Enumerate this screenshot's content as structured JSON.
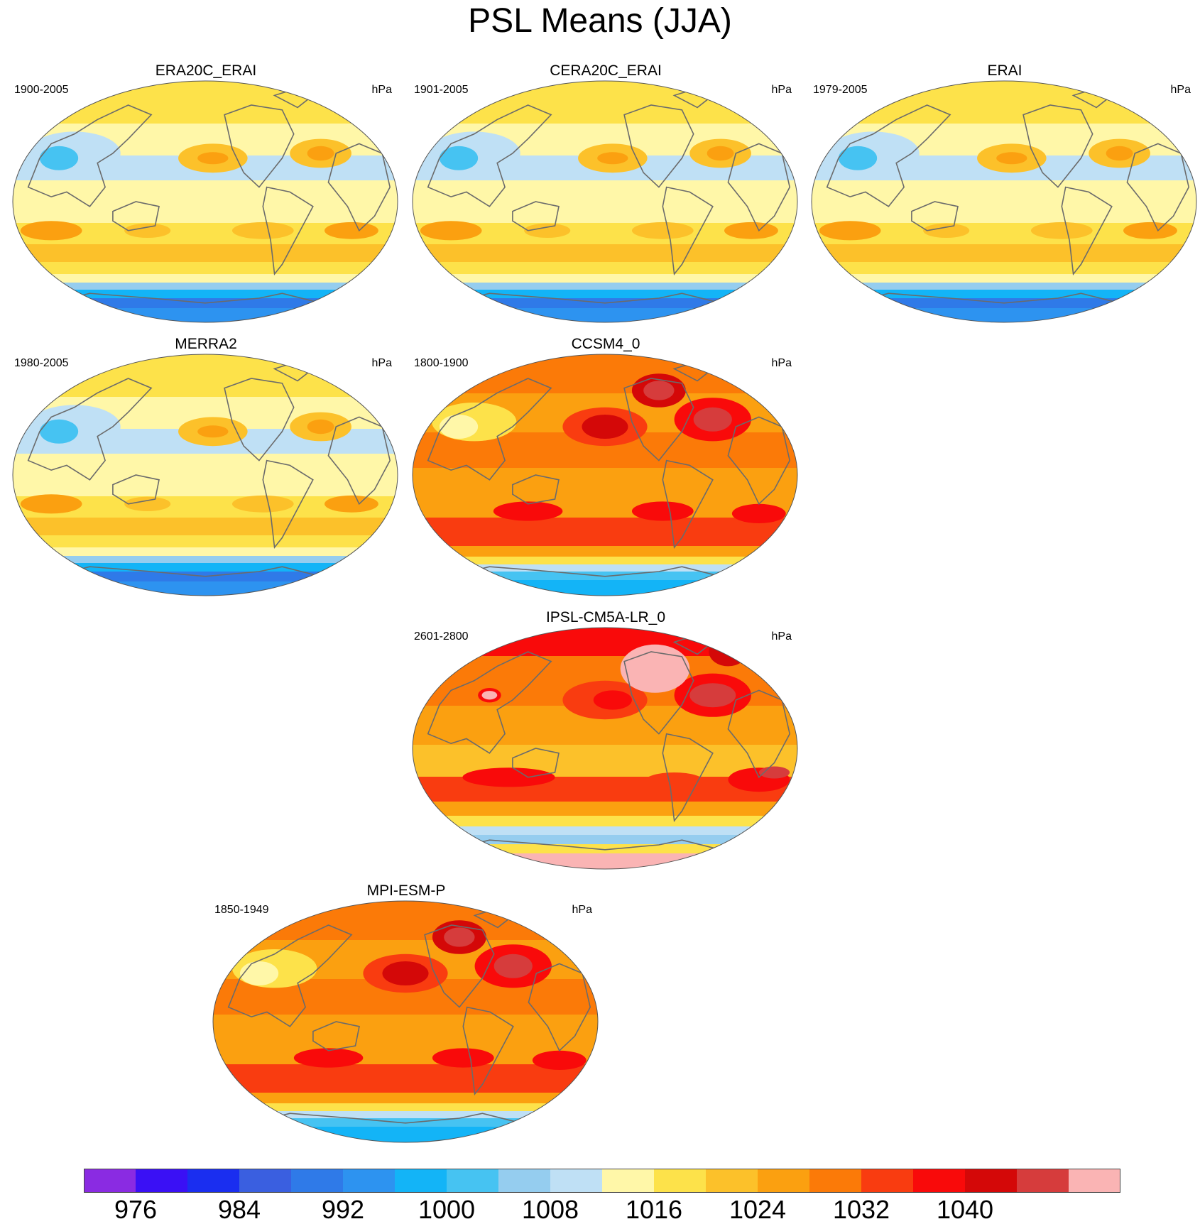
{
  "chart_data": {
    "type": "heatmap",
    "title": "PSL Means (JJA)",
    "units": "hPa",
    "projection": "robinson",
    "panels": [
      {
        "name": "ERA20C_ERAI",
        "period": "1900-2005",
        "units": "hPa",
        "regime": "cool"
      },
      {
        "name": "CERA20C_ERAI",
        "period": "1901-2005",
        "units": "hPa",
        "regime": "cool"
      },
      {
        "name": "ERAI",
        "period": "1979-2005",
        "units": "hPa",
        "regime": "cool"
      },
      {
        "name": "MERRA2",
        "period": "1980-2005",
        "units": "hPa",
        "regime": "cool"
      },
      {
        "name": "CCSM4_0",
        "period": "1800-1900",
        "units": "hPa",
        "regime": "warm"
      },
      {
        "name": "IPSL-CM5A-LR_0",
        "period": "2601-2800",
        "units": "hPa",
        "regime": "hot"
      },
      {
        "name": "MPI-ESM-P",
        "period": "1850-1949",
        "units": "hPa",
        "regime": "warm"
      }
    ],
    "colorbar": {
      "colors": [
        "#8a2be2",
        "#3a10f5",
        "#1a2ef0",
        "#3a5fe0",
        "#2f7ae8",
        "#2d93f0",
        "#13b4f7",
        "#46c3f2",
        "#95cdef",
        "#bfe0f5",
        "#fff7a8",
        "#fde24a",
        "#fcc12a",
        "#fba010",
        "#fb7a08",
        "#f93c10",
        "#f90a0a",
        "#d40808",
        "#d63c3c",
        "#fab4b4"
      ],
      "labels": [
        "976",
        "984",
        "992",
        "1000",
        "1008",
        "1016",
        "1024",
        "1032",
        "1040"
      ]
    }
  }
}
